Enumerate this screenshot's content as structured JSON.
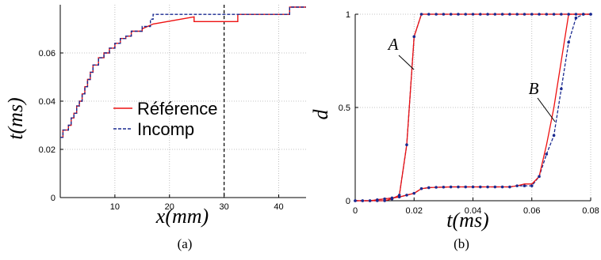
{
  "chart_data": [
    {
      "type": "line",
      "panel_label": "(a)",
      "xlabel": "x(mm)",
      "ylabel": "t(ms)",
      "xlim": [
        0,
        45
      ],
      "ylim": [
        0,
        0.08
      ],
      "x_ticks": [
        "10",
        "20",
        "30",
        "40"
      ],
      "y_ticks": [
        "0",
        "0.02",
        "0.04",
        "0.06"
      ],
      "grid": true,
      "legend_position": "center",
      "vertical_marker_x": 30,
      "series": [
        {
          "name": "Référence",
          "color": "#ee1111",
          "style": "solid",
          "x": [
            0,
            0.5,
            0.5,
            1.5,
            1.5,
            2,
            2,
            2.5,
            2.5,
            3,
            3,
            3.5,
            3.5,
            4,
            4,
            4.5,
            4.5,
            5,
            5,
            5.5,
            5.5,
            6,
            6,
            7,
            7,
            8,
            8,
            9,
            9,
            10,
            10,
            11,
            11,
            12,
            12,
            13,
            13,
            15,
            15,
            17,
            24.5,
            24.5,
            32.5,
            32.5,
            42,
            42,
            45
          ],
          "y": [
            0.025,
            0.025,
            0.028,
            0.028,
            0.03,
            0.03,
            0.033,
            0.033,
            0.035,
            0.035,
            0.038,
            0.038,
            0.04,
            0.04,
            0.043,
            0.043,
            0.046,
            0.046,
            0.049,
            0.049,
            0.052,
            0.052,
            0.055,
            0.055,
            0.058,
            0.058,
            0.06,
            0.06,
            0.062,
            0.062,
            0.064,
            0.064,
            0.066,
            0.066,
            0.067,
            0.067,
            0.069,
            0.069,
            0.07,
            0.072,
            0.075,
            0.073,
            0.073,
            0.076,
            0.076,
            0.079,
            0.079
          ]
        },
        {
          "name": "Incomp",
          "color": "#1a2a90",
          "style": "dashed",
          "x": [
            0,
            0.5,
            0.5,
            1.5,
            1.5,
            2,
            2,
            2.5,
            2.5,
            3,
            3,
            3.5,
            3.5,
            4,
            4,
            4.5,
            4.5,
            5,
            5,
            5.5,
            5.5,
            6,
            6,
            7,
            7,
            8,
            8,
            9,
            9,
            10,
            10,
            11,
            11,
            12,
            12,
            13,
            13,
            15,
            15,
            16.5,
            16.5,
            17,
            17,
            42,
            42,
            45
          ],
          "y": [
            0.025,
            0.025,
            0.028,
            0.028,
            0.03,
            0.03,
            0.033,
            0.033,
            0.035,
            0.035,
            0.038,
            0.038,
            0.04,
            0.04,
            0.043,
            0.043,
            0.046,
            0.046,
            0.049,
            0.049,
            0.052,
            0.052,
            0.055,
            0.055,
            0.058,
            0.058,
            0.06,
            0.06,
            0.062,
            0.062,
            0.064,
            0.064,
            0.066,
            0.066,
            0.067,
            0.067,
            0.069,
            0.069,
            0.071,
            0.071,
            0.074,
            0.074,
            0.076,
            0.076,
            0.079,
            0.079
          ]
        }
      ]
    },
    {
      "type": "line",
      "panel_label": "(b)",
      "xlabel": "t(ms)",
      "ylabel": "d",
      "xlim": [
        0,
        0.08
      ],
      "ylim": [
        0,
        1
      ],
      "x_ticks": [
        "0",
        "0.02",
        "0.04",
        "0.06",
        "0.08"
      ],
      "y_ticks": [
        "0",
        "0.5",
        "1"
      ],
      "grid": true,
      "annotations": [
        "A",
        "B"
      ],
      "series": [
        {
          "name": "A",
          "color": "#ee1111",
          "marker_color": "#1a2a90",
          "x": [
            0,
            0.0025,
            0.005,
            0.0075,
            0.01,
            0.0125,
            0.015,
            0.0175,
            0.02,
            0.0225,
            0.025,
            0.0275,
            0.03,
            0.0325,
            0.035,
            0.0375,
            0.04,
            0.0425,
            0.045,
            0.0475,
            0.05,
            0.0525,
            0.055,
            0.0575,
            0.06,
            0.0625,
            0.065,
            0.0675,
            0.07,
            0.0725,
            0.075,
            0.0775,
            0.08
          ],
          "y": [
            0,
            0,
            0,
            0,
            0,
            0.01,
            0.03,
            0.3,
            0.88,
            1,
            1,
            1,
            1,
            1,
            1,
            1,
            1,
            1,
            1,
            1,
            1,
            1,
            1,
            1,
            1,
            1,
            1,
            1,
            1,
            1,
            1,
            1,
            1
          ]
        },
        {
          "name": "B",
          "color": "#ee1111",
          "x": [
            0,
            0.0025,
            0.005,
            0.0075,
            0.01,
            0.0125,
            0.015,
            0.0175,
            0.02,
            0.0225,
            0.025,
            0.0275,
            0.03,
            0.0325,
            0.035,
            0.0375,
            0.04,
            0.0425,
            0.045,
            0.0475,
            0.05,
            0.0525,
            0.055,
            0.0575,
            0.06,
            0.0625,
            0.065,
            0.0675,
            0.07,
            0.0725,
            0.075,
            0.0775,
            0.08
          ],
          "y": [
            0,
            0,
            0,
            0.005,
            0.01,
            0.015,
            0.02,
            0.03,
            0.04,
            0.065,
            0.07,
            0.072,
            0.073,
            0.074,
            0.074,
            0.074,
            0.074,
            0.074,
            0.074,
            0.074,
            0.074,
            0.074,
            0.08,
            0.09,
            0.09,
            0.13,
            0.3,
            0.5,
            0.75,
            1,
            1,
            1,
            1
          ]
        },
        {
          "name": "B (Incomp)",
          "color": "#1a2a90",
          "style": "dashed",
          "x": [
            0,
            0.0025,
            0.005,
            0.0075,
            0.01,
            0.0125,
            0.015,
            0.0175,
            0.02,
            0.0225,
            0.025,
            0.0275,
            0.03,
            0.0325,
            0.035,
            0.0375,
            0.04,
            0.0425,
            0.045,
            0.0475,
            0.05,
            0.0525,
            0.055,
            0.0575,
            0.06,
            0.0625,
            0.065,
            0.0675,
            0.07,
            0.0725,
            0.075,
            0.0775,
            0.08
          ],
          "y": [
            0,
            0,
            0,
            0.005,
            0.01,
            0.015,
            0.02,
            0.03,
            0.04,
            0.065,
            0.07,
            0.072,
            0.073,
            0.074,
            0.074,
            0.074,
            0.074,
            0.074,
            0.074,
            0.074,
            0.074,
            0.074,
            0.08,
            0.08,
            0.08,
            0.13,
            0.25,
            0.35,
            0.6,
            0.85,
            0.98,
            1,
            1
          ]
        }
      ]
    }
  ]
}
